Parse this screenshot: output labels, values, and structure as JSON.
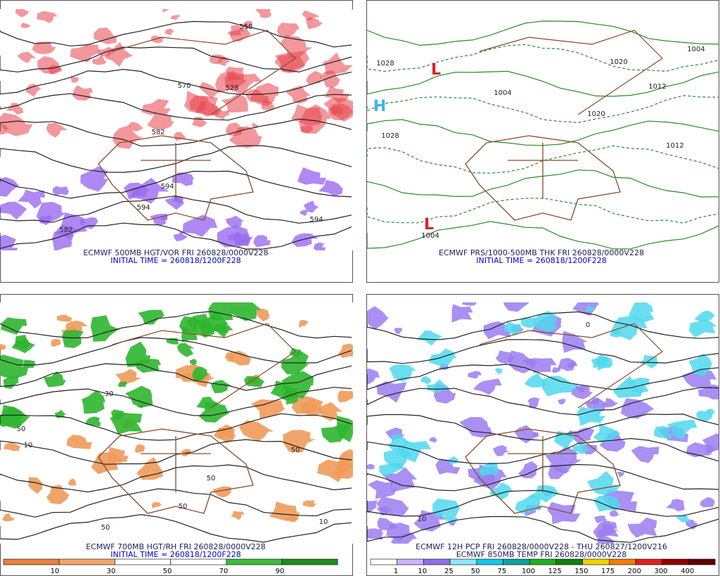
{
  "panels": [
    {
      "caption": "ECMWF 500MB HGT/VOR FRI 260828/0000V228",
      "initial_time": "INITIAL TIME = 260818/1200F228",
      "contour_labels": [
        "558",
        "528",
        "570",
        "582",
        "594",
        "594",
        "582",
        "594"
      ]
    },
    {
      "caption": "ECMWF PRS/1000-500MB THK FRI 260828/0000V228",
      "initial_time": "INITIAL TIME = 260818/1200F228",
      "contour_labels": [
        "1028",
        "1028",
        "1004",
        "1020",
        "1012",
        "1004",
        "1012",
        "1004",
        "1020",
        "H",
        "L",
        "L"
      ]
    },
    {
      "caption": "ECMWF 700MB HGT/RH FRI 260828/0000V228",
      "initial_time": "INITIAL TIME = 260818/1200F228",
      "contour_labels": [
        "50",
        "10",
        "50",
        "30",
        "50",
        "50",
        "10",
        "50"
      ]
    },
    {
      "caption": "ECMWF 12H PCP FRI 260828/0000V228 - THU 260827/1200V216",
      "initial_time": "ECMWF 850MB TEMP FRI 260828/0000V228",
      "contour_labels": [
        "0",
        "10"
      ]
    }
  ],
  "colorbars": [
    {
      "labels": [
        "10",
        "30",
        "50",
        "70",
        "90"
      ]
    },
    {
      "labels": [
        "1",
        "10",
        "25",
        "50",
        "75",
        "100",
        "125",
        "150",
        "175",
        "200",
        "300",
        "400"
      ]
    }
  ]
}
